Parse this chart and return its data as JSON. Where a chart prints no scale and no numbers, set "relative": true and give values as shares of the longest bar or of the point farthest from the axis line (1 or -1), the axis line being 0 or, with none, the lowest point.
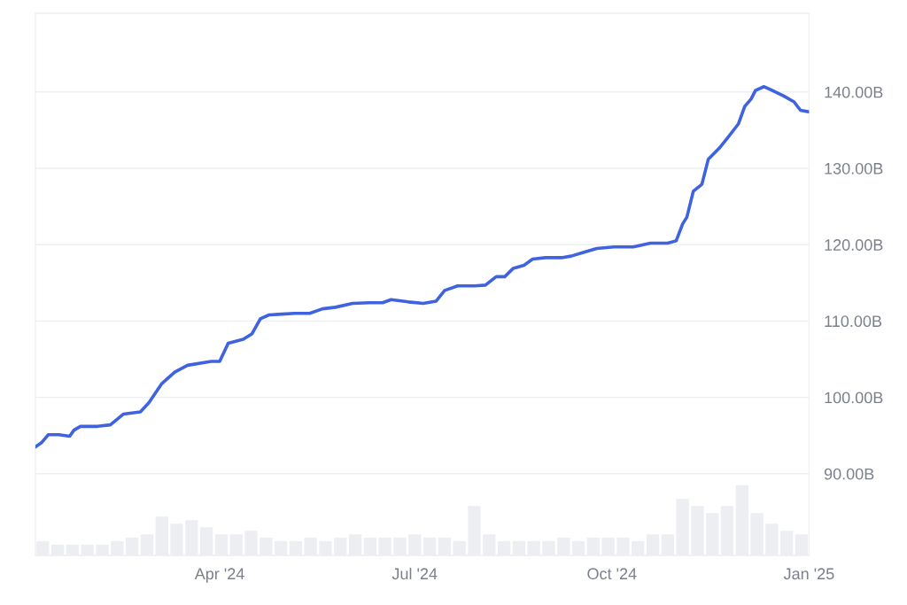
{
  "chart_data": [
    {
      "type": "line",
      "xlim": [
        "2024-01-06",
        "2025-01-01"
      ],
      "xticks": [
        {
          "value": "2024-04-01",
          "label": "Apr '24"
        },
        {
          "value": "2024-07-01",
          "label": "Jul '24"
        },
        {
          "value": "2024-10-01",
          "label": "Oct '24"
        },
        {
          "value": "2025-01-01",
          "label": "Jan '25"
        }
      ],
      "ylim": [
        79.3,
        150.3
      ],
      "yticks": [
        {
          "value": 90,
          "label": "90.00B"
        },
        {
          "value": 100,
          "label": "100.00B"
        },
        {
          "value": 110,
          "label": "110.00B"
        },
        {
          "value": 120,
          "label": "120.00B"
        },
        {
          "value": 130,
          "label": "130.00B"
        },
        {
          "value": 140,
          "label": "140.00B"
        }
      ],
      "grid": "y",
      "series": [
        {
          "color": "#3f63e0",
          "x": [
            "2024-01-06",
            "2024-01-09",
            "2024-01-12",
            "2024-01-17",
            "2024-01-22",
            "2024-01-24",
            "2024-01-27",
            "2024-02-04",
            "2024-02-10",
            "2024-02-16",
            "2024-02-24",
            "2024-02-28",
            "2024-03-05",
            "2024-03-11",
            "2024-03-17",
            "2024-03-28",
            "2024-04-01",
            "2024-04-05",
            "2024-04-12",
            "2024-04-16",
            "2024-04-20",
            "2024-04-24",
            "2024-04-30",
            "2024-05-06",
            "2024-05-13",
            "2024-05-19",
            "2024-05-25",
            "2024-06-02",
            "2024-06-10",
            "2024-06-16",
            "2024-06-20",
            "2024-06-28",
            "2024-07-05",
            "2024-07-11",
            "2024-07-15",
            "2024-07-21",
            "2024-07-29",
            "2024-08-03",
            "2024-08-08",
            "2024-08-12",
            "2024-08-16",
            "2024-08-21",
            "2024-08-25",
            "2024-08-31",
            "2024-09-08",
            "2024-09-12",
            "2024-09-18",
            "2024-09-24",
            "2024-10-02",
            "2024-10-11",
            "2024-10-19",
            "2024-10-27",
            "2024-10-31",
            "2024-11-03",
            "2024-11-05",
            "2024-11-08",
            "2024-11-12",
            "2024-11-15",
            "2024-11-20",
            "2024-11-24",
            "2024-11-29",
            "2024-12-02",
            "2024-12-05",
            "2024-12-07",
            "2024-12-11",
            "2024-12-14",
            "2024-12-20",
            "2024-12-25",
            "2024-12-28",
            "2025-01-01"
          ],
          "values": [
            93.5,
            94.1,
            95.1,
            95.1,
            94.9,
            95.7,
            96.2,
            96.2,
            96.4,
            97.8,
            98.1,
            99.3,
            101.8,
            103.3,
            104.2,
            104.7,
            104.7,
            107.1,
            107.6,
            108.3,
            110.3,
            110.8,
            110.9,
            111.0,
            111.0,
            111.6,
            111.8,
            112.3,
            112.4,
            112.4,
            112.8,
            112.5,
            112.3,
            112.6,
            114.0,
            114.6,
            114.6,
            114.7,
            115.8,
            115.8,
            116.9,
            117.3,
            118.1,
            118.3,
            118.3,
            118.5,
            119.0,
            119.5,
            119.7,
            119.7,
            120.2,
            120.2,
            120.5,
            122.7,
            123.6,
            127.0,
            127.9,
            131.2,
            132.6,
            134.0,
            135.8,
            138.1,
            139.1,
            140.2,
            140.7,
            140.3,
            139.5,
            138.7,
            137.6,
            137.4
          ]
        }
      ]
    },
    {
      "type": "bar",
      "relative": true,
      "tick_labels": false,
      "color": "#eceef2",
      "categories": [
        null,
        null,
        null,
        null,
        null,
        null,
        null,
        null,
        null,
        null,
        null,
        null,
        null,
        null,
        null,
        null,
        null,
        null,
        null,
        null,
        null,
        null,
        null,
        null,
        null,
        null,
        null,
        null,
        null,
        null,
        null,
        null,
        null,
        null,
        null,
        null,
        null,
        null,
        null,
        null,
        null,
        null,
        null,
        null,
        null,
        null,
        null,
        null,
        null,
        null,
        null,
        null
      ],
      "values": [
        0.2,
        0.15,
        0.15,
        0.15,
        0.15,
        0.2,
        0.25,
        0.3,
        0.55,
        0.45,
        0.5,
        0.4,
        0.3,
        0.3,
        0.35,
        0.25,
        0.2,
        0.2,
        0.25,
        0.2,
        0.25,
        0.3,
        0.25,
        0.25,
        0.25,
        0.3,
        0.25,
        0.25,
        0.2,
        0.7,
        0.3,
        0.2,
        0.2,
        0.2,
        0.2,
        0.25,
        0.2,
        0.25,
        0.25,
        0.25,
        0.2,
        0.3,
        0.3,
        0.8,
        0.7,
        0.6,
        0.7,
        1.0,
        0.6,
        0.45,
        0.35,
        0.3
      ]
    }
  ]
}
